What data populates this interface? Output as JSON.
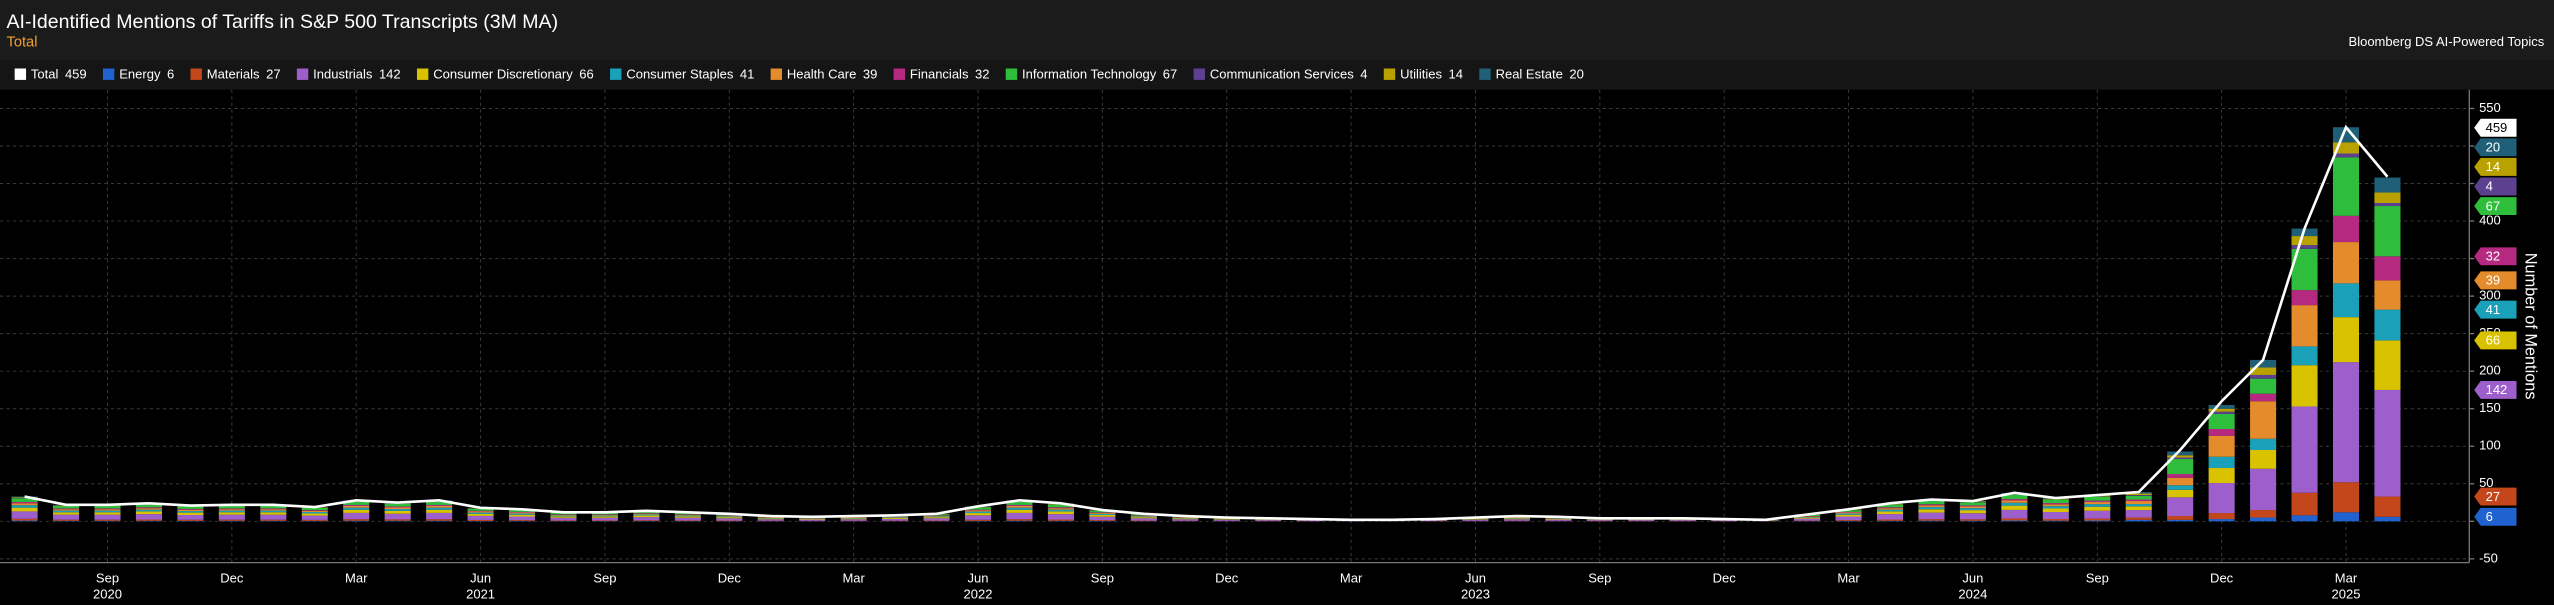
{
  "chart_data": {
    "type": "bar",
    "stacked": true,
    "title": "AI-Identified Mentions of Tariffs in S&P 500 Transcripts (3M MA)",
    "subtitle": "Total",
    "source": "Bloomberg DS AI-Powered Topics",
    "ylabel": "Number of Mentions",
    "grid": true,
    "ylim": [
      -55,
      575
    ],
    "yticks": [
      -50,
      0,
      50,
      100,
      150,
      200,
      250,
      300,
      350,
      400,
      450,
      500,
      550
    ],
    "x": [
      "2020-07",
      "2020-08",
      "2020-09",
      "2020-10",
      "2020-11",
      "2020-12",
      "2021-01",
      "2021-02",
      "2021-03",
      "2021-04",
      "2021-05",
      "2021-06",
      "2021-07",
      "2021-08",
      "2021-09",
      "2021-10",
      "2021-11",
      "2021-12",
      "2022-01",
      "2022-02",
      "2022-03",
      "2022-04",
      "2022-05",
      "2022-06",
      "2022-07",
      "2022-08",
      "2022-09",
      "2022-10",
      "2022-11",
      "2022-12",
      "2023-01",
      "2023-02",
      "2023-03",
      "2023-04",
      "2023-05",
      "2023-06",
      "2023-07",
      "2023-08",
      "2023-09",
      "2023-10",
      "2023-11",
      "2023-12",
      "2024-01",
      "2024-02",
      "2024-03",
      "2024-04",
      "2024-05",
      "2024-06",
      "2024-07",
      "2024-08",
      "2024-09",
      "2024-10",
      "2024-11",
      "2024-12",
      "2025-01",
      "2025-02",
      "2025-03",
      "2025-04"
    ],
    "xticks": [
      {
        "value": "2020-09",
        "label": "Sep"
      },
      {
        "value": "2020-12",
        "label": "Dec"
      },
      {
        "value": "2021-03",
        "label": "Mar"
      },
      {
        "value": "2021-06",
        "label": "Jun"
      },
      {
        "value": "2021-09",
        "label": "Sep"
      },
      {
        "value": "2021-12",
        "label": "Dec"
      },
      {
        "value": "2022-03",
        "label": "Mar"
      },
      {
        "value": "2022-06",
        "label": "Jun"
      },
      {
        "value": "2022-09",
        "label": "Sep"
      },
      {
        "value": "2022-12",
        "label": "Dec"
      },
      {
        "value": "2023-03",
        "label": "Mar"
      },
      {
        "value": "2023-06",
        "label": "Jun"
      },
      {
        "value": "2023-09",
        "label": "Sep"
      },
      {
        "value": "2023-12",
        "label": "Dec"
      },
      {
        "value": "2024-03",
        "label": "Mar"
      },
      {
        "value": "2024-06",
        "label": "Jun"
      },
      {
        "value": "2024-09",
        "label": "Sep"
      },
      {
        "value": "2024-12",
        "label": "Dec"
      },
      {
        "value": "2025-03",
        "label": "Mar"
      }
    ],
    "year_labels": [
      {
        "value": "2020-09",
        "label": "2020"
      },
      {
        "value": "2021-06",
        "label": "2021"
      },
      {
        "value": "2022-06",
        "label": "2022"
      },
      {
        "value": "2023-06",
        "label": "2023"
      },
      {
        "value": "2024-06",
        "label": "2024"
      },
      {
        "value": "2025-03",
        "label": "2025"
      }
    ],
    "series": [
      {
        "name": "Total",
        "type": "line",
        "color": "#ffffff",
        "values": [
          33,
          22,
          22,
          24,
          21,
          22,
          22,
          19,
          28,
          25,
          28,
          18,
          16,
          12,
          12,
          14,
          12,
          10,
          7,
          6,
          7,
          8,
          10,
          20,
          28,
          24,
          15,
          10,
          7,
          5,
          4,
          3,
          2,
          2,
          3,
          5,
          7,
          6,
          4,
          4,
          4,
          3,
          2,
          9,
          16,
          24,
          29,
          27,
          38,
          31,
          35,
          39,
          95,
          160,
          215,
          390,
          525,
          459
        ]
      },
      {
        "name": "Energy",
        "color": "#1f62d0",
        "values": [
          1,
          0.7,
          0.7,
          0.7,
          0.6,
          0.7,
          0.7,
          0.6,
          0.8,
          0.8,
          0.8,
          0.5,
          0.5,
          0.4,
          0.4,
          0.4,
          0.4,
          0.3,
          0.2,
          0.2,
          0.2,
          0.2,
          0.3,
          0.6,
          0.8,
          0.7,
          0.5,
          0.3,
          0.2,
          0.2,
          0.1,
          0.1,
          0.1,
          0.1,
          0.1,
          0.2,
          0.2,
          0.2,
          0.1,
          0.1,
          0.1,
          0.1,
          0.1,
          0.3,
          0.5,
          0.7,
          0.9,
          0.8,
          1.1,
          0.9,
          1.1,
          2,
          2,
          3,
          5,
          8,
          12,
          6
        ]
      },
      {
        "name": "Materials",
        "color": "#c4471c",
        "values": [
          2.3,
          1.5,
          1.5,
          1.7,
          1.5,
          1.5,
          1.5,
          1.3,
          2,
          1.8,
          2,
          1.3,
          1.1,
          0.8,
          0.8,
          1,
          0.8,
          0.7,
          0.5,
          0.4,
          0.5,
          0.6,
          0.7,
          1.4,
          2,
          1.7,
          1.1,
          0.7,
          0.5,
          0.4,
          0.3,
          0.2,
          0.1,
          0.1,
          0.2,
          0.4,
          0.5,
          0.4,
          0.3,
          0.3,
          0.3,
          0.2,
          0.1,
          0.6,
          1.1,
          1.7,
          2,
          1.9,
          2.7,
          2.2,
          2.5,
          3,
          5,
          8,
          10,
          30,
          40,
          27
        ]
      },
      {
        "name": "Industrials",
        "color": "#9c5fcc",
        "values": [
          9.9,
          6.6,
          6.6,
          7.2,
          6.3,
          6.6,
          6.6,
          5.7,
          8.4,
          7.5,
          8.4,
          5.4,
          4.8,
          3.6,
          3.6,
          4.2,
          3.6,
          3,
          2.1,
          1.8,
          2.1,
          2.4,
          3,
          6,
          8.4,
          7.2,
          4.5,
          3,
          2.1,
          1.5,
          1.2,
          0.9,
          0.6,
          0.6,
          0.9,
          1.5,
          2.1,
          1.8,
          1.2,
          1.2,
          1.2,
          0.9,
          0.6,
          2.7,
          4.8,
          7.2,
          8.7,
          8.1,
          11.4,
          9.3,
          10.5,
          10,
          25,
          40,
          55,
          115,
          160,
          142
        ]
      },
      {
        "name": "Consumer Discretionary",
        "color": "#d9c300",
        "values": [
          5,
          3.3,
          3.3,
          3.6,
          3.2,
          3.3,
          3.3,
          2.9,
          4.2,
          3.8,
          4.2,
          2.7,
          2.4,
          1.8,
          1.8,
          2.1,
          1.8,
          1.5,
          1.1,
          0.9,
          1.1,
          1.2,
          1.5,
          3,
          4.2,
          3.6,
          2.3,
          1.5,
          1.1,
          0.8,
          0.6,
          0.5,
          0.3,
          0.3,
          0.5,
          0.8,
          1.1,
          0.9,
          0.6,
          0.6,
          0.6,
          0.5,
          0.3,
          1.4,
          2.4,
          3.6,
          4.4,
          4.1,
          5.7,
          4.7,
          5.3,
          5,
          10,
          20,
          25,
          55,
          60,
          66
        ]
      },
      {
        "name": "Consumer Staples",
        "color": "#1aa0b8",
        "values": [
          3.3,
          2.2,
          2.2,
          2.4,
          2.1,
          2.2,
          2.2,
          1.9,
          2.8,
          2.5,
          2.8,
          1.8,
          1.6,
          1.2,
          1.2,
          1.4,
          1.2,
          1,
          0.7,
          0.6,
          0.7,
          0.8,
          1,
          2,
          2.8,
          2.4,
          1.5,
          1,
          0.7,
          0.5,
          0.4,
          0.3,
          0.2,
          0.2,
          0.3,
          0.5,
          0.7,
          0.6,
          0.4,
          0.4,
          0.4,
          0.3,
          0.2,
          0.9,
          1.6,
          2.4,
          2.9,
          2.7,
          3.8,
          3.1,
          3.5,
          3,
          6,
          15,
          15,
          25,
          45,
          41
        ]
      },
      {
        "name": "Health Care",
        "color": "#e48b2c",
        "values": [
          2.6,
          1.8,
          1.8,
          1.9,
          1.7,
          1.8,
          1.8,
          1.5,
          2.2,
          2,
          2.2,
          1.4,
          1.3,
          1,
          1,
          1.1,
          1,
          0.8,
          0.6,
          0.5,
          0.6,
          0.6,
          0.8,
          1.6,
          2.2,
          1.9,
          1.2,
          0.8,
          0.6,
          0.4,
          0.3,
          0.2,
          0.2,
          0.2,
          0.2,
          0.4,
          0.6,
          0.5,
          0.3,
          0.3,
          0.3,
          0.2,
          0.2,
          0.7,
          1.3,
          1.9,
          2.3,
          2.2,
          3,
          2.5,
          2.8,
          4,
          10,
          28,
          50,
          55,
          55,
          39
        ]
      },
      {
        "name": "Financials",
        "color": "#b52a80",
        "values": [
          1.7,
          1.1,
          1.1,
          1.2,
          1.1,
          1.1,
          1.1,
          1,
          1.4,
          1.3,
          1.4,
          0.9,
          0.8,
          0.6,
          0.6,
          0.7,
          0.6,
          0.5,
          0.4,
          0.3,
          0.4,
          0.4,
          0.5,
          1,
          1.4,
          1.2,
          0.8,
          0.5,
          0.4,
          0.3,
          0.2,
          0.2,
          0.1,
          0.1,
          0.2,
          0.3,
          0.4,
          0.3,
          0.2,
          0.2,
          0.2,
          0.2,
          0.1,
          0.5,
          0.8,
          1.2,
          1.5,
          1.4,
          1.9,
          1.6,
          1.8,
          2,
          5,
          9,
          10,
          20,
          35,
          32
        ]
      },
      {
        "name": "Information Technology",
        "color": "#2fbd3c",
        "values": [
          5,
          3.3,
          3.3,
          3.6,
          3.2,
          3.3,
          3.3,
          2.9,
          4.2,
          3.8,
          4.2,
          2.7,
          2.4,
          1.8,
          1.8,
          2.1,
          1.8,
          1.5,
          1.1,
          0.9,
          1.1,
          1.2,
          1.5,
          3,
          4.2,
          3.6,
          2.3,
          1.5,
          1.1,
          0.8,
          0.6,
          0.5,
          0.3,
          0.3,
          0.5,
          0.8,
          1.1,
          0.9,
          0.6,
          0.6,
          0.6,
          0.5,
          0.3,
          1.4,
          2.4,
          3.6,
          4.4,
          4.1,
          5.7,
          4.7,
          5.3,
          5,
          20,
          20,
          20,
          55,
          78,
          67
        ]
      },
      {
        "name": "Communication Services",
        "color": "#5b4190",
        "values": [
          0.3,
          0.2,
          0.2,
          0.2,
          0.2,
          0.2,
          0.2,
          0.2,
          0.3,
          0.3,
          0.3,
          0.2,
          0.2,
          0.1,
          0.1,
          0.1,
          0.1,
          0.1,
          0.1,
          0.1,
          0.1,
          0.1,
          0.1,
          0.2,
          0.3,
          0.2,
          0.2,
          0.1,
          0.1,
          0.1,
          0,
          0,
          0,
          0,
          0,
          0.1,
          0.1,
          0.1,
          0,
          0,
          0,
          0,
          0,
          0.1,
          0.2,
          0.2,
          0.3,
          0.3,
          0.4,
          0.3,
          0.4,
          1,
          2,
          3,
          5,
          5,
          5,
          4
        ]
      },
      {
        "name": "Utilities",
        "color": "#b9a200",
        "values": [
          1,
          0.7,
          0.7,
          0.7,
          0.6,
          0.7,
          0.7,
          0.6,
          0.8,
          0.8,
          0.8,
          0.5,
          0.5,
          0.4,
          0.4,
          0.4,
          0.4,
          0.3,
          0.2,
          0.2,
          0.2,
          0.2,
          0.3,
          0.6,
          0.8,
          0.7,
          0.5,
          0.3,
          0.2,
          0.2,
          0.1,
          0.1,
          0.1,
          0.1,
          0.1,
          0.2,
          0.2,
          0.2,
          0.1,
          0.1,
          0.1,
          0.1,
          0.1,
          0.3,
          0.5,
          0.7,
          0.9,
          0.8,
          1.1,
          0.9,
          1.1,
          2,
          3,
          4,
          10,
          12,
          15,
          14
        ]
      },
      {
        "name": "Real Estate",
        "color": "#1f6078",
        "values": [
          1,
          0.7,
          0.7,
          0.7,
          0.6,
          0.7,
          0.7,
          0.6,
          0.8,
          0.8,
          0.8,
          0.5,
          0.5,
          0.4,
          0.4,
          0.4,
          0.4,
          0.3,
          0.2,
          0.2,
          0.2,
          0.2,
          0.3,
          0.6,
          0.8,
          0.7,
          0.5,
          0.3,
          0.2,
          0.2,
          0.1,
          0.1,
          0.1,
          0.1,
          0.1,
          0.2,
          0.2,
          0.2,
          0.1,
          0.1,
          0.1,
          0.1,
          0.1,
          0.3,
          0.5,
          0.7,
          0.9,
          0.8,
          1.1,
          0.9,
          1.1,
          2,
          5,
          5,
          10,
          10,
          20,
          20
        ]
      }
    ]
  }
}
